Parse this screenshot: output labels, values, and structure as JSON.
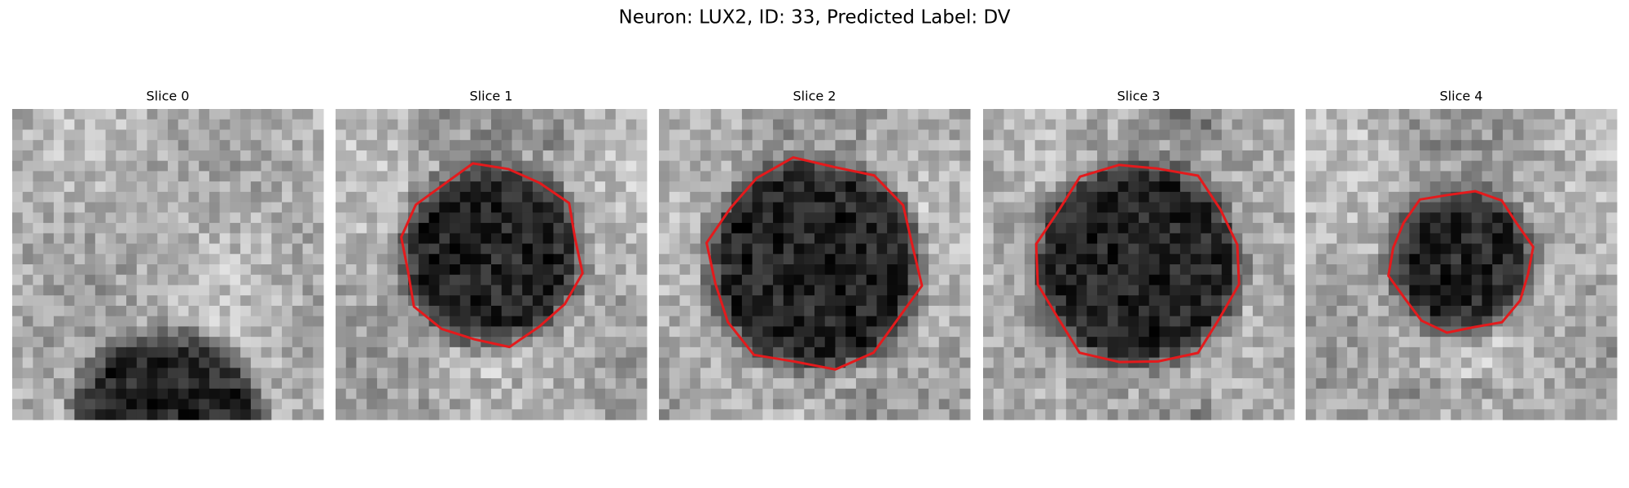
{
  "title": "Neuron: LUX2, ID: 33, Predicted Label: DV",
  "panels": [
    {
      "title": "Slice 0"
    },
    {
      "title": "Slice 1"
    },
    {
      "title": "Slice 2"
    },
    {
      "title": "Slice 3"
    },
    {
      "title": "Slice 4"
    }
  ]
}
